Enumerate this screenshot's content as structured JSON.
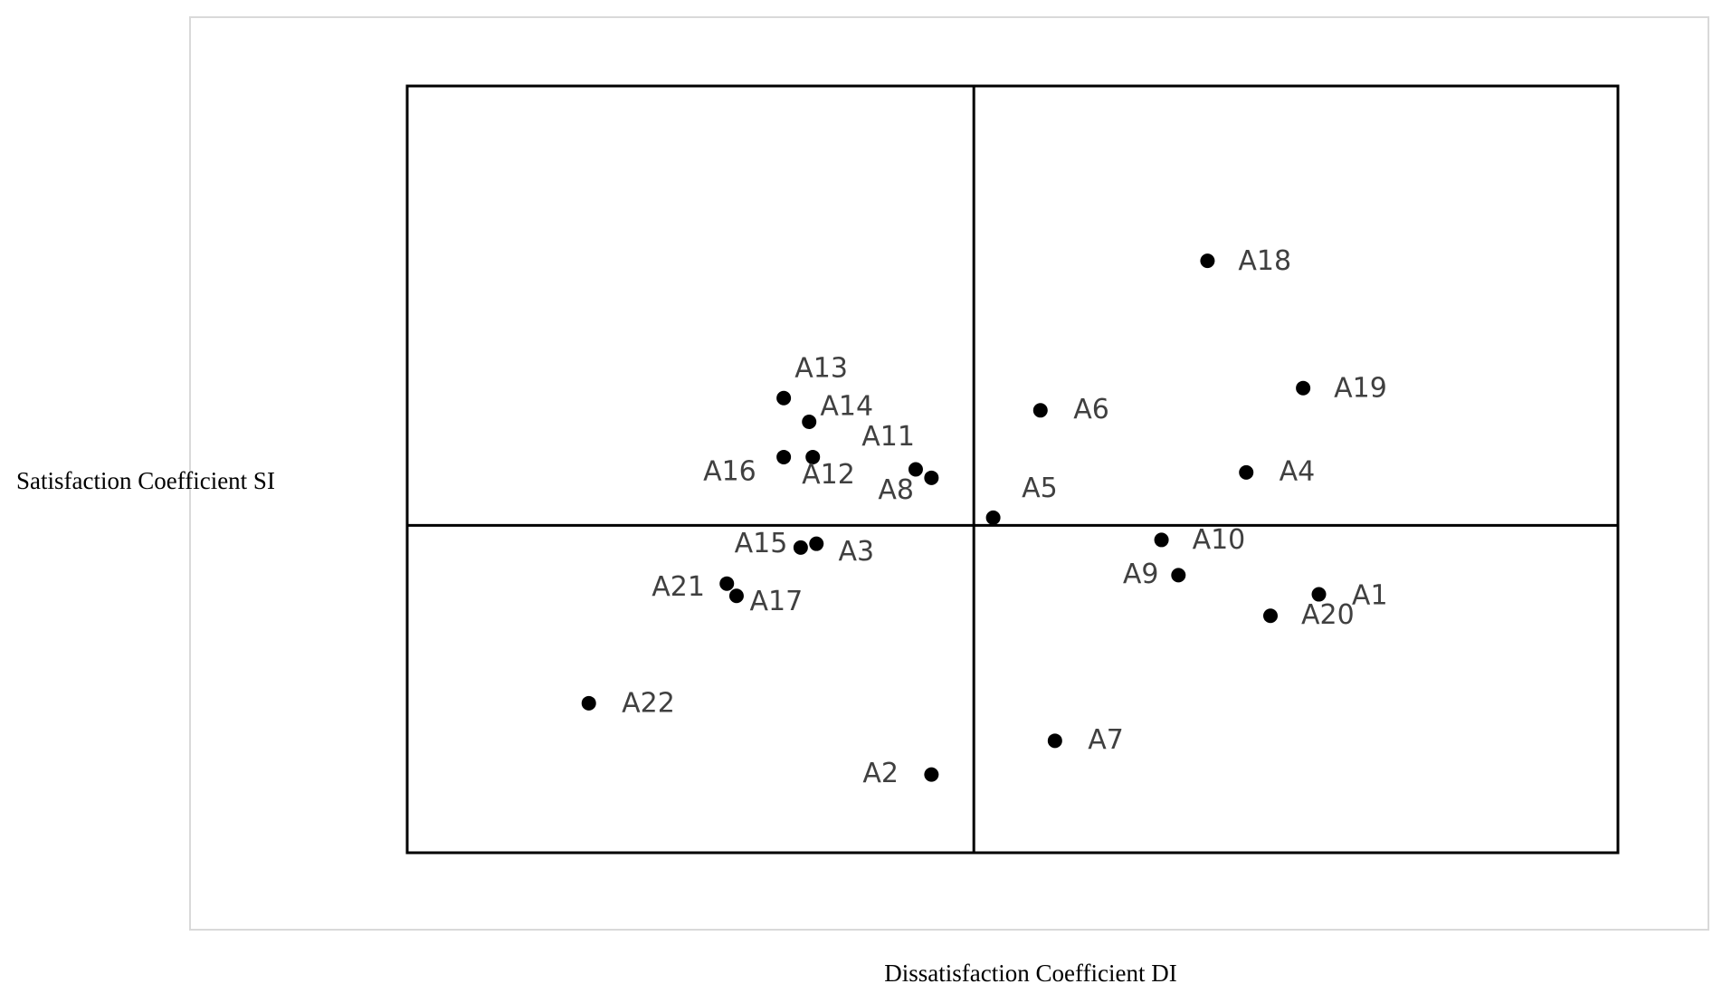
{
  "chart_data": {
    "type": "scatter",
    "x_label": "Dissatisfaction Coefficient DI",
    "y_label": "Satisfaction Coefficient SI",
    "xlim": [
      0,
      100
    ],
    "ylim": [
      0,
      100
    ],
    "quadrant_lines": {
      "x": 46.8,
      "y": 42.7
    },
    "color": "#000000",
    "points": [
      {
        "label": "A1",
        "x": 75.3,
        "y": 33.7
      },
      {
        "label": "A2",
        "x": 43.3,
        "y": 10.2
      },
      {
        "label": "A3",
        "x": 33.8,
        "y": 40.3
      },
      {
        "label": "A4",
        "x": 69.3,
        "y": 49.6
      },
      {
        "label": "A5",
        "x": 48.4,
        "y": 43.7
      },
      {
        "label": "A6",
        "x": 52.3,
        "y": 57.7
      },
      {
        "label": "A7",
        "x": 53.5,
        "y": 14.6
      },
      {
        "label": "A8",
        "x": 43.3,
        "y": 48.9
      },
      {
        "label": "A9",
        "x": 63.7,
        "y": 36.2
      },
      {
        "label": "A10",
        "x": 62.3,
        "y": 40.8
      },
      {
        "label": "A11",
        "x": 42.0,
        "y": 50.0
      },
      {
        "label": "A12",
        "x": 33.5,
        "y": 51.6
      },
      {
        "label": "A13",
        "x": 31.1,
        "y": 59.3
      },
      {
        "label": "A14",
        "x": 33.2,
        "y": 56.2
      },
      {
        "label": "A15",
        "x": 32.5,
        "y": 39.8
      },
      {
        "label": "A16",
        "x": 31.1,
        "y": 51.6
      },
      {
        "label": "A17",
        "x": 27.2,
        "y": 33.5
      },
      {
        "label": "A18",
        "x": 66.1,
        "y": 77.2
      },
      {
        "label": "A19",
        "x": 74.0,
        "y": 60.6
      },
      {
        "label": "A20",
        "x": 71.3,
        "y": 30.9
      },
      {
        "label": "A21",
        "x": 26.4,
        "y": 35.1
      },
      {
        "label": "A22",
        "x": 15.0,
        "y": 19.5
      }
    ]
  }
}
